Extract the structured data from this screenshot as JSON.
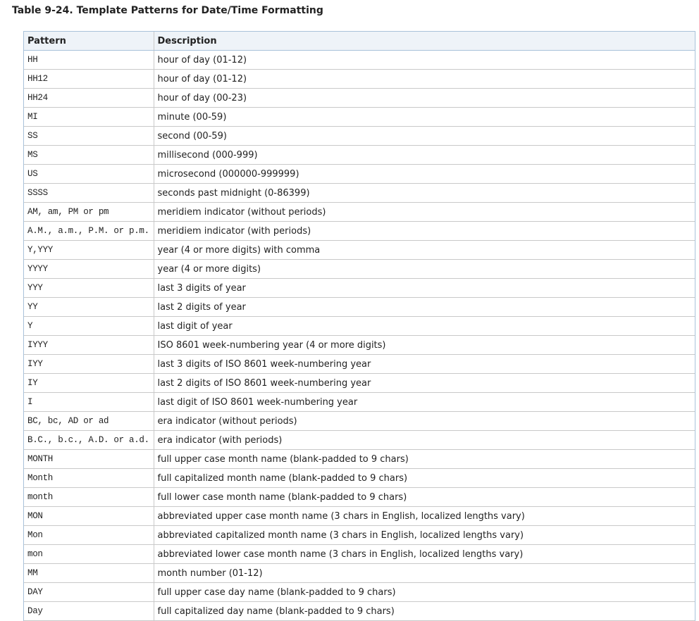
{
  "title": "Table 9-24. Template Patterns for Date/Time Formatting",
  "table": {
    "header": [
      "Pattern",
      "Description"
    ],
    "rows": [
      [
        "HH",
        "hour of day (01-12)"
      ],
      [
        "HH12",
        "hour of day (01-12)"
      ],
      [
        "HH24",
        "hour of day (00-23)"
      ],
      [
        "MI",
        "minute (00-59)"
      ],
      [
        "SS",
        "second (00-59)"
      ],
      [
        "MS",
        "millisecond (000-999)"
      ],
      [
        "US",
        "microsecond (000000-999999)"
      ],
      [
        "SSSS",
        "seconds past midnight (0-86399)"
      ],
      [
        "AM, am, PM or pm",
        "meridiem indicator (without periods)"
      ],
      [
        "A.M., a.m., P.M. or p.m.",
        "meridiem indicator (with periods)"
      ],
      [
        "Y,YYY",
        "year (4 or more digits) with comma"
      ],
      [
        "YYYY",
        "year (4 or more digits)"
      ],
      [
        "YYY",
        "last 3 digits of year"
      ],
      [
        "YY",
        "last 2 digits of year"
      ],
      [
        "Y",
        "last digit of year"
      ],
      [
        "IYYY",
        "ISO 8601 week-numbering year (4 or more digits)"
      ],
      [
        "IYY",
        "last 3 digits of ISO 8601 week-numbering year"
      ],
      [
        "IY",
        "last 2 digits of ISO 8601 week-numbering year"
      ],
      [
        "I",
        "last digit of ISO 8601 week-numbering year"
      ],
      [
        "BC, bc, AD or ad",
        "era indicator (without periods)"
      ],
      [
        "B.C., b.c., A.D. or a.d.",
        "era indicator (with periods)"
      ],
      [
        "MONTH",
        "full upper case month name (blank-padded to 9 chars)"
      ],
      [
        "Month",
        "full capitalized month name (blank-padded to 9 chars)"
      ],
      [
        "month",
        "full lower case month name (blank-padded to 9 chars)"
      ],
      [
        "MON",
        "abbreviated upper case month name (3 chars in English, localized lengths vary)"
      ],
      [
        "Mon",
        "abbreviated capitalized month name (3 chars in English, localized lengths vary)"
      ],
      [
        "mon",
        "abbreviated lower case month name (3 chars in English, localized lengths vary)"
      ],
      [
        "MM",
        "month number (01-12)"
      ],
      [
        "DAY",
        "full upper case day name (blank-padded to 9 chars)"
      ],
      [
        "Day",
        "full capitalized day name (blank-padded to 9 chars)"
      ]
    ]
  }
}
